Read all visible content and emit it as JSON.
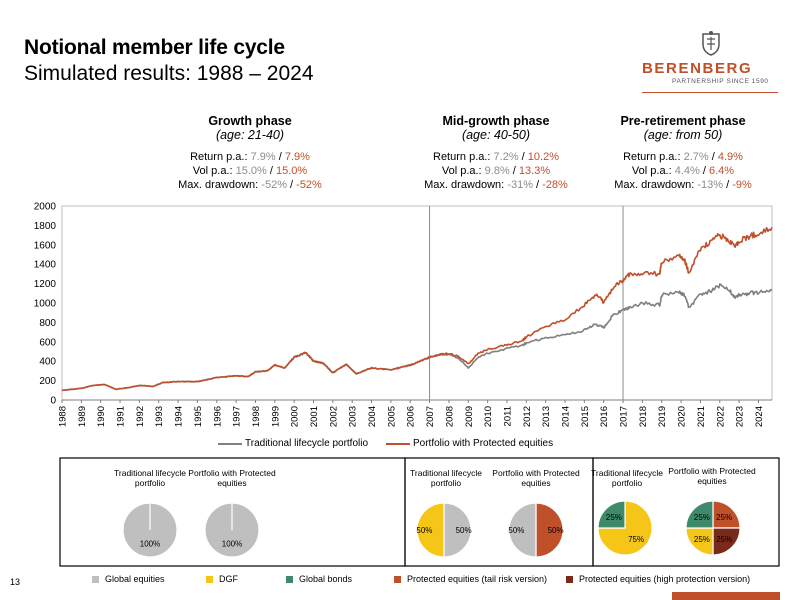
{
  "header": {
    "title": "Notional member life cycle",
    "subtitle": "Simulated results: 1988 – 2024"
  },
  "logo": {
    "brand": "BERENBERG",
    "tagline": "PARTNERSHIP SINCE 1590",
    "color": "#c0502a"
  },
  "phases": [
    {
      "title": "Growth phase",
      "age": "(age: 21-40)",
      "return_label": "Return p.a.: ",
      "return_trad": "7.9%",
      "return_prot": "7.9%",
      "vol_label": "Vol p.a.: ",
      "vol_trad": "15.0%",
      "vol_prot": "15.0%",
      "dd_label": "Max. drawdown: ",
      "dd_trad": "-52%",
      "dd_prot": "-52%"
    },
    {
      "title": "Mid-growth phase",
      "age": "(age: 40-50)",
      "return_label": "Return p.a.: ",
      "return_trad": "7.2%",
      "return_prot": "10.2%",
      "vol_label": "Vol p.a.: ",
      "vol_trad": "9.8%",
      "vol_prot": "13.3%",
      "dd_label": "Max. drawdown: ",
      "dd_trad": "-31%",
      "dd_prot": "-28%"
    },
    {
      "title": "Pre-retirement phase",
      "age": "(age: from 50)",
      "return_label": "Return p.a.: ",
      "return_trad": "2.7%",
      "return_prot": "4.9%",
      "vol_label": "Vol p.a.: ",
      "vol_trad": "4.4%",
      "vol_prot": "6.4%",
      "dd_label": "Max. drawdown: ",
      "dd_trad": "-13%",
      "dd_prot": "-9%"
    }
  ],
  "separator": " / ",
  "chart_data": {
    "type": "line",
    "title": "",
    "xlabel": "",
    "ylabel": "",
    "x_range": [
      1988,
      2024.7
    ],
    "ylim": [
      0,
      2000
    ],
    "y_ticks": [
      0,
      200,
      400,
      600,
      800,
      1000,
      1200,
      1400,
      1600,
      1800,
      2000
    ],
    "x_tick_labels": [
      "1988",
      "1989",
      "1990",
      "1991",
      "1992",
      "1993",
      "1994",
      "1995",
      "1996",
      "1997",
      "1998",
      "1999",
      "2000",
      "2001",
      "2002",
      "2003",
      "2004",
      "2005",
      "2006",
      "2007",
      "2008",
      "2009",
      "2010",
      "2011",
      "2012",
      "2013",
      "2014",
      "2015",
      "2016",
      "2017",
      "2018",
      "2019",
      "2020",
      "2021",
      "2022",
      "2023",
      "2024"
    ],
    "phase_dividers": [
      2007,
      2017
    ],
    "legend_position": "bottom",
    "series": [
      {
        "name": "Traditional lifecycle portfolio",
        "color": "#7f7f7f",
        "x": [
          1988,
          1989,
          1989.6,
          1990.2,
          1990.8,
          1991.5,
          1992,
          1992.7,
          1993.2,
          1994,
          1995,
          1996,
          1997,
          1997.6,
          1998,
          1998.6,
          1999,
          1999.5,
          2000,
          2000.6,
          2001,
          2001.5,
          2002,
          2002.7,
          2003.2,
          2004,
          2005,
          2006,
          2006.5,
          2007,
          2007.6,
          2008,
          2008.5,
          2009,
          2009.5,
          2010,
          2011,
          2011.8,
          2012,
          2013,
          2014,
          2015,
          2015.6,
          2016,
          2016.5,
          2017,
          2017.3,
          2018,
          2018.9,
          2019,
          2019.9,
          2020.2,
          2020.4,
          2021,
          2021.5,
          2022,
          2022.5,
          2022.8,
          2023,
          2023.5,
          2024,
          2024.7
        ],
        "values": [
          100,
          120,
          150,
          160,
          110,
          130,
          150,
          140,
          180,
          190,
          190,
          230,
          250,
          240,
          290,
          300,
          360,
          330,
          440,
          490,
          400,
          380,
          280,
          370,
          270,
          330,
          310,
          360,
          400,
          440,
          470,
          470,
          430,
          330,
          440,
          480,
          530,
          560,
          590,
          640,
          670,
          720,
          780,
          750,
          880,
          920,
          950,
          1000,
          980,
          1080,
          1110,
          1080,
          950,
          1090,
          1120,
          1180,
          1130,
          1060,
          1080,
          1100,
          1110,
          1130
        ]
      },
      {
        "name": "Portfolio with Protected equities",
        "color": "#c0502a",
        "x": [
          1988,
          1989,
          1989.6,
          1990.2,
          1990.8,
          1991.5,
          1992,
          1992.7,
          1993.2,
          1994,
          1995,
          1996,
          1997,
          1997.6,
          1998,
          1998.6,
          1999,
          1999.5,
          2000,
          2000.6,
          2001,
          2001.5,
          2002,
          2002.7,
          2003.2,
          2004,
          2005,
          2006,
          2006.5,
          2007,
          2007.6,
          2008,
          2008.5,
          2009,
          2009.5,
          2010,
          2011,
          2011.8,
          2012,
          2013,
          2014,
          2015,
          2015.6,
          2016,
          2016.5,
          2017,
          2017.3,
          2018,
          2018.9,
          2019,
          2019.9,
          2020.2,
          2020.4,
          2021,
          2021.5,
          2022,
          2022.5,
          2022.8,
          2023,
          2023.5,
          2024,
          2024.7
        ],
        "values": [
          100,
          120,
          150,
          160,
          110,
          130,
          150,
          140,
          180,
          190,
          190,
          230,
          250,
          240,
          290,
          300,
          360,
          330,
          440,
          490,
          400,
          380,
          280,
          370,
          270,
          330,
          310,
          360,
          400,
          440,
          470,
          480,
          450,
          370,
          480,
          520,
          570,
          610,
          650,
          750,
          830,
          980,
          1090,
          1010,
          1160,
          1240,
          1290,
          1310,
          1300,
          1430,
          1480,
          1430,
          1320,
          1560,
          1620,
          1700,
          1640,
          1590,
          1640,
          1680,
          1720,
          1780
        ]
      }
    ]
  },
  "allocations": {
    "groups": [
      {
        "pies": [
          {
            "title": "Traditional lifecycle portfolio",
            "slices": [
              {
                "category": "Global equities",
                "value": 100,
                "label": "100%"
              }
            ]
          },
          {
            "title": "Portfolio with Protected equities",
            "slices": [
              {
                "category": "Global equities",
                "value": 100,
                "label": "100%"
              }
            ]
          }
        ]
      },
      {
        "pies": [
          {
            "title": "Traditional lifecycle portfolio",
            "slices": [
              {
                "category": "Global equities",
                "value": 50,
                "label": "50%"
              },
              {
                "category": "DGF",
                "value": 50,
                "label": "50%"
              }
            ]
          },
          {
            "title": "Portfolio with Protected equities",
            "slices": [
              {
                "category": "Protected equities (tail risk version)",
                "value": 50,
                "label": "50%"
              },
              {
                "category": "Global equities",
                "value": 50,
                "label": "50%"
              }
            ]
          }
        ]
      },
      {
        "pies": [
          {
            "title": "Traditional lifecycle portfolio",
            "slices": [
              {
                "category": "DGF",
                "value": 75,
                "label": "75%"
              },
              {
                "category": "Global bonds",
                "value": 25,
                "label": "25%"
              }
            ]
          },
          {
            "title": "Portfolio with Protected equities",
            "slices": [
              {
                "category": "Protected equities (tail risk version)",
                "value": 25,
                "label": "25%"
              },
              {
                "category": "Protected equities (high protection version)",
                "value": 25,
                "label": "25%"
              },
              {
                "category": "DGF",
                "value": 25,
                "label": "25%"
              },
              {
                "category": "Global bonds",
                "value": 25,
                "label": "25%"
              }
            ]
          }
        ]
      }
    ],
    "legend": [
      {
        "label": "Global equities",
        "color": "#bfbfbf"
      },
      {
        "label": "DGF",
        "color": "#f5c518"
      },
      {
        "label": "Global bonds",
        "color": "#3f8a6a"
      },
      {
        "label": "Protected equities (tail risk version)",
        "color": "#c0502a"
      },
      {
        "label": "Protected equities (high protection version)",
        "color": "#7a2a1a"
      }
    ]
  },
  "footer": {
    "page_number": "13"
  }
}
